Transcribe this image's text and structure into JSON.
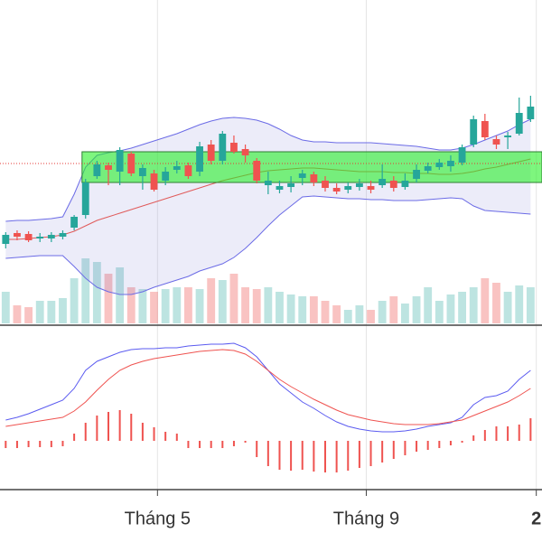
{
  "chart_data": {
    "type": "candlestick",
    "xlim": [
      -0.5,
      47
    ],
    "xticks": [
      {
        "value": 13.3,
        "label": "Tháng 5"
      },
      {
        "value": 31.6,
        "label": "Tháng 9"
      },
      {
        "value": 46.5,
        "label": "2"
      }
    ],
    "ylim": [
      -18,
      340
    ],
    "up_color": "#26a69a",
    "down_color": "#ef5350",
    "open": [
      70,
      82,
      81,
      76,
      76,
      78,
      88,
      102,
      145,
      157,
      150,
      170,
      145,
      148,
      140,
      152,
      157,
      150,
      180,
      162,
      182,
      175,
      162,
      135,
      130,
      133,
      143,
      147,
      140,
      132,
      130,
      133,
      134,
      135,
      140,
      133,
      142,
      151,
      155,
      156,
      160,
      180,
      206,
      186,
      188,
      192,
      208
    ],
    "close": [
      80,
      78,
      74,
      78,
      80,
      82,
      100,
      138,
      158,
      152,
      174,
      148,
      154,
      130,
      150,
      156,
      145,
      178,
      162,
      192,
      172,
      168,
      140,
      140,
      134,
      137,
      148,
      138,
      132,
      128,
      134,
      137,
      130,
      142,
      132,
      140,
      152,
      156,
      160,
      162,
      177,
      208,
      188,
      180,
      190,
      215,
      222
    ],
    "high": [
      83,
      85,
      84,
      82,
      83,
      85,
      102,
      142,
      162,
      160,
      177,
      172,
      158,
      152,
      155,
      162,
      160,
      183,
      185,
      195,
      190,
      180,
      165,
      150,
      140,
      145,
      152,
      150,
      145,
      137,
      138,
      142,
      140,
      158,
      145,
      148,
      158,
      160,
      164,
      168,
      180,
      212,
      214,
      190,
      194,
      232,
      234
    ],
    "low": [
      65,
      74,
      72,
      72,
      72,
      75,
      85,
      98,
      142,
      135,
      135,
      145,
      130,
      128,
      135,
      148,
      142,
      145,
      158,
      158,
      170,
      160,
      137,
      125,
      126,
      127,
      135,
      134,
      128,
      125,
      126,
      129,
      126,
      132,
      128,
      130,
      138,
      148,
      152,
      150,
      157,
      177,
      185,
      175,
      175,
      190,
      205
    ],
    "bands": {
      "color": "#6b6be6",
      "fill": "rgba(110,110,210,0.13)",
      "middle_color": "#e05a5a",
      "upper": [
        95,
        96,
        96,
        97,
        98,
        100,
        125,
        155,
        168,
        171,
        173,
        176,
        180,
        184,
        188,
        192,
        197,
        202,
        206,
        209,
        210,
        209,
        207,
        203,
        197,
        190,
        185,
        183,
        183,
        182,
        182,
        182,
        182,
        181,
        180,
        179,
        178,
        176,
        174,
        174,
        176,
        180,
        185,
        190,
        195,
        202,
        208
      ],
      "middle": [
        75,
        75,
        76,
        77,
        78,
        80,
        84,
        90,
        96,
        100,
        104,
        108,
        112,
        116,
        120,
        124,
        128,
        132,
        136,
        140,
        143,
        146,
        149,
        151,
        152,
        153,
        154,
        154,
        153,
        152,
        151,
        150,
        150,
        150,
        149,
        149,
        148,
        148,
        147,
        147,
        148,
        150,
        153,
        155,
        158,
        161,
        164
      ],
      "lower": [
        54,
        55,
        56,
        57,
        57,
        57,
        45,
        32,
        22,
        17,
        14,
        14,
        17,
        22,
        26,
        30,
        34,
        40,
        44,
        48,
        55,
        65,
        77,
        90,
        102,
        112,
        122,
        123,
        122,
        121,
        120,
        120,
        119,
        119,
        118,
        118,
        118,
        119,
        120,
        121,
        120,
        112,
        107,
        106,
        105,
        104,
        103
      ]
    },
    "zone": {
      "start": 7,
      "top": 172,
      "bottom": 138,
      "color": "rgba(40,240,40,0.6)",
      "border": "#2e7d32"
    },
    "price_line": {
      "value": 159,
      "color": "#e53935"
    },
    "volume": {
      "ylim": [
        0,
        358
      ],
      "up_color": "rgba(38,166,154,0.3)",
      "down_color": "rgba(239,83,80,0.35)",
      "values": [
        35,
        20,
        18,
        25,
        25,
        28,
        50,
        72,
        68,
        55,
        62,
        40,
        38,
        35,
        38,
        40,
        40,
        38,
        50,
        48,
        55,
        40,
        38,
        40,
        35,
        32,
        30,
        30,
        25,
        20,
        15,
        20,
        15,
        25,
        30,
        22,
        30,
        40,
        25,
        32,
        35,
        40,
        50,
        45,
        35,
        42,
        40
      ]
    },
    "macd": {
      "ylim": [
        -52,
        126
      ],
      "line_color": "#5b5bf0",
      "signal_color": "#ef5350",
      "hist_color": "#ef5350",
      "macd": [
        23,
        26,
        30,
        35,
        40,
        45,
        58,
        78,
        88,
        93,
        98,
        101,
        102,
        102,
        103,
        103,
        105,
        106,
        107,
        107,
        108,
        103,
        93,
        78,
        63,
        53,
        43,
        36,
        28,
        21,
        16,
        13,
        11,
        10,
        10,
        11,
        13,
        16,
        18,
        20,
        26,
        40,
        48,
        50,
        55,
        68,
        78
      ],
      "signal": [
        16,
        18,
        20,
        22,
        24,
        26,
        33,
        43,
        56,
        68,
        78,
        84,
        88,
        91,
        93,
        95,
        97,
        99,
        100,
        101,
        100,
        96,
        88,
        78,
        68,
        60,
        53,
        46,
        40,
        34,
        29,
        26,
        23,
        21,
        19,
        18,
        18,
        18,
        19,
        21,
        23,
        28,
        33,
        38,
        43,
        50,
        58
      ],
      "histogram": [
        -8,
        -8,
        -7,
        -7,
        -7,
        -6,
        8,
        20,
        28,
        32,
        34,
        30,
        20,
        15,
        10,
        8,
        -8,
        -8,
        -8,
        -8,
        -6,
        -2,
        -18,
        -28,
        -32,
        -33,
        -32,
        -34,
        -35,
        -35,
        -33,
        -30,
        -28,
        -24,
        -20,
        -16,
        -12,
        -10,
        -8,
        -5,
        -2,
        6,
        12,
        16,
        16,
        18,
        25
      ]
    }
  }
}
